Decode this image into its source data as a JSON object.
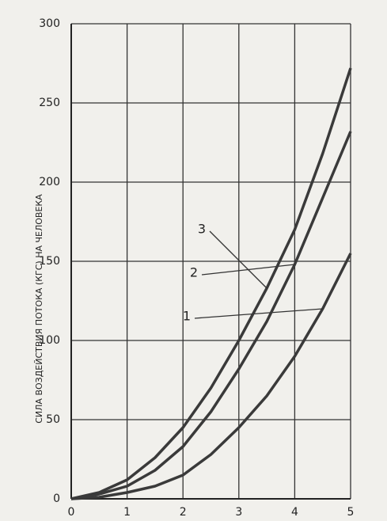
{
  "chart_data": {
    "type": "line",
    "y_label": "СИЛА ВОЗДЕЙСТВИЯ ПОТОКА (КГС) НА ЧЕЛОВЕКА",
    "x": [
      0,
      0.5,
      1,
      1.5,
      2,
      2.5,
      3,
      3.5,
      4,
      4.5,
      5
    ],
    "series": [
      {
        "name": "1",
        "color": "#3a3a3a",
        "values": [
          0,
          1,
          4,
          8,
          15,
          28,
          45,
          65,
          90,
          120,
          155
        ]
      },
      {
        "name": "2",
        "color": "#3a3a3a",
        "values": [
          0,
          3,
          8,
          18,
          33,
          55,
          82,
          112,
          148,
          190,
          232
        ]
      },
      {
        "name": "3",
        "color": "#3a3a3a",
        "values": [
          0,
          4,
          12,
          26,
          45,
          70,
          100,
          133,
          170,
          218,
          272
        ]
      }
    ],
    "xlim": [
      0,
      5
    ],
    "xticks": [
      0,
      1,
      2,
      3,
      4,
      5
    ],
    "ylim": [
      0,
      300
    ],
    "yticks": [
      0,
      50,
      100,
      150,
      200,
      250,
      300
    ],
    "grid": true
  }
}
